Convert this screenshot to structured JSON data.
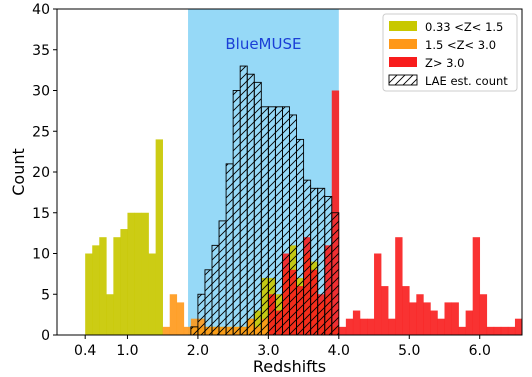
{
  "chart_data": {
    "type": "bar",
    "xlabel": "Redshifts",
    "ylabel": "Count",
    "xlim": [
      0.0,
      6.6
    ],
    "ylim": [
      0,
      40
    ],
    "xticks": [
      {
        "v": 0.4,
        "label": "0.4"
      },
      {
        "v": 1.0,
        "label": "1.0"
      },
      {
        "v": 2.0,
        "label": "2.0"
      },
      {
        "v": 3.0,
        "label": "3.0"
      },
      {
        "v": 4.0,
        "label": "4.0"
      },
      {
        "v": 5.0,
        "label": "5.0"
      },
      {
        "v": 6.0,
        "label": "6.0"
      }
    ],
    "yticks": [
      0,
      5,
      10,
      15,
      20,
      25,
      30,
      35,
      40
    ],
    "grid": false,
    "legend_position": "top-right",
    "annotations": [
      {
        "text": "BlueMUSE",
        "color": "#1a3fd6"
      }
    ],
    "shaded_region": {
      "x0": 1.86,
      "x1": 4.0,
      "color": "#96d9f7",
      "label": "BlueMUSE"
    },
    "series": [
      {
        "name": "0.33 <Z< 1.5",
        "color": "#c8c800",
        "bins": [
          [
            0.4,
            0.5,
            10
          ],
          [
            0.5,
            0.6,
            11
          ],
          [
            0.6,
            0.7,
            12
          ],
          [
            0.7,
            0.8,
            5
          ],
          [
            0.8,
            0.9,
            12
          ],
          [
            0.9,
            1.0,
            13
          ],
          [
            1.0,
            1.1,
            15
          ],
          [
            1.1,
            1.2,
            15
          ],
          [
            1.2,
            1.3,
            15
          ],
          [
            1.3,
            1.4,
            10
          ],
          [
            1.4,
            1.5,
            24
          ],
          [
            1.9,
            2.0,
            1
          ],
          [
            2.0,
            2.1,
            1
          ],
          [
            2.1,
            2.2,
            1
          ],
          [
            2.2,
            2.3,
            1
          ],
          [
            2.3,
            2.4,
            1
          ],
          [
            2.4,
            2.5,
            1
          ],
          [
            2.5,
            2.6,
            1
          ],
          [
            2.6,
            2.7,
            1
          ],
          [
            2.7,
            2.8,
            2
          ],
          [
            2.8,
            2.9,
            3
          ],
          [
            2.9,
            3.0,
            7
          ],
          [
            3.0,
            3.1,
            7
          ],
          [
            3.1,
            3.2,
            5
          ],
          [
            3.2,
            3.3,
            8
          ],
          [
            3.3,
            3.4,
            11
          ],
          [
            3.4,
            3.5,
            7
          ],
          [
            3.5,
            3.6,
            10
          ],
          [
            3.6,
            3.7,
            9
          ],
          [
            3.7,
            3.8,
            4
          ],
          [
            3.8,
            3.9,
            5
          ],
          [
            3.9,
            4.0,
            1
          ]
        ]
      },
      {
        "name": "1.5 <Z< 3.0",
        "color": "#ff9818",
        "bins": [
          [
            1.5,
            1.6,
            1
          ],
          [
            1.6,
            1.7,
            5
          ],
          [
            1.7,
            1.8,
            4
          ],
          [
            1.8,
            1.9,
            1
          ],
          [
            1.9,
            2.0,
            2
          ],
          [
            2.0,
            2.1,
            2
          ],
          [
            2.1,
            2.2,
            1
          ],
          [
            2.2,
            2.3,
            1
          ],
          [
            2.3,
            2.4,
            1
          ],
          [
            2.4,
            2.5,
            1
          ],
          [
            2.5,
            2.6,
            1
          ],
          [
            2.6,
            2.7,
            1
          ],
          [
            2.7,
            2.8,
            2
          ],
          [
            2.8,
            2.9,
            1
          ],
          [
            2.9,
            3.0,
            2
          ]
        ]
      },
      {
        "name": "Z> 3.0",
        "color": "#f81c1c",
        "bins": [
          [
            3.0,
            3.1,
            5
          ],
          [
            3.1,
            3.2,
            3
          ],
          [
            3.2,
            3.3,
            10
          ],
          [
            3.3,
            3.4,
            8
          ],
          [
            3.4,
            3.5,
            6
          ],
          [
            3.5,
            3.6,
            12
          ],
          [
            3.6,
            3.7,
            8
          ],
          [
            3.7,
            3.8,
            5
          ],
          [
            3.8,
            3.9,
            11
          ],
          [
            3.9,
            4.0,
            30
          ],
          [
            4.0,
            4.1,
            1
          ],
          [
            4.1,
            4.2,
            2
          ],
          [
            4.2,
            4.3,
            3
          ],
          [
            4.3,
            4.4,
            2
          ],
          [
            4.4,
            4.5,
            2
          ],
          [
            4.5,
            4.6,
            10
          ],
          [
            4.6,
            4.7,
            6
          ],
          [
            4.7,
            4.8,
            2
          ],
          [
            4.8,
            4.9,
            12
          ],
          [
            4.9,
            5.0,
            6
          ],
          [
            5.0,
            5.1,
            4
          ],
          [
            5.1,
            5.2,
            5
          ],
          [
            5.2,
            5.3,
            4
          ],
          [
            5.3,
            5.4,
            3
          ],
          [
            5.4,
            5.5,
            2
          ],
          [
            5.5,
            5.6,
            4
          ],
          [
            5.6,
            5.7,
            4
          ],
          [
            5.7,
            5.8,
            1
          ],
          [
            5.8,
            5.9,
            3
          ],
          [
            5.9,
            6.0,
            12
          ],
          [
            6.0,
            6.1,
            5
          ],
          [
            6.1,
            6.2,
            1
          ],
          [
            6.2,
            6.3,
            1
          ],
          [
            6.3,
            6.4,
            1
          ],
          [
            6.4,
            6.5,
            1
          ],
          [
            6.5,
            6.6,
            2
          ]
        ]
      },
      {
        "name": "LAE est. count",
        "color": "none",
        "hatch": true,
        "bins": [
          [
            1.9,
            2.0,
            1
          ],
          [
            2.0,
            2.1,
            5
          ],
          [
            2.1,
            2.2,
            8
          ],
          [
            2.2,
            2.3,
            11
          ],
          [
            2.3,
            2.4,
            14
          ],
          [
            2.4,
            2.5,
            21
          ],
          [
            2.5,
            2.6,
            30
          ],
          [
            2.6,
            2.7,
            33
          ],
          [
            2.7,
            2.8,
            32
          ],
          [
            2.8,
            2.9,
            31
          ],
          [
            2.9,
            3.0,
            28
          ],
          [
            3.0,
            3.1,
            28
          ],
          [
            3.1,
            3.2,
            28
          ],
          [
            3.2,
            3.3,
            28
          ],
          [
            3.3,
            3.4,
            27
          ],
          [
            3.4,
            3.5,
            24
          ],
          [
            3.5,
            3.6,
            19
          ],
          [
            3.6,
            3.7,
            18
          ],
          [
            3.7,
            3.8,
            18
          ],
          [
            3.8,
            3.9,
            17
          ],
          [
            3.9,
            4.0,
            15
          ]
        ]
      }
    ]
  }
}
